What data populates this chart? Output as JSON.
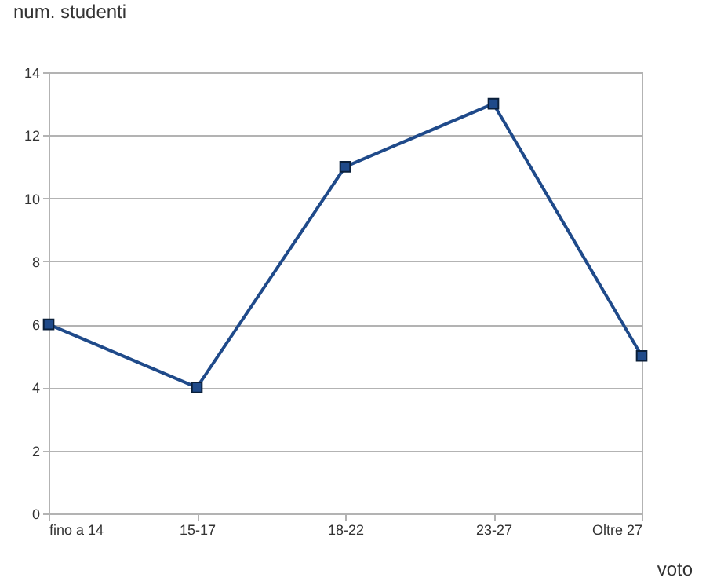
{
  "chart_data": {
    "type": "line",
    "xlabel": "voto",
    "ylabel": "num. studenti",
    "categories": [
      "fino a 14",
      "15-17",
      "18-22",
      "23-27",
      "Oltre 27"
    ],
    "series": [
      {
        "color": "#1f4a8a",
        "values": [
          6,
          4,
          11,
          13,
          5
        ]
      }
    ],
    "ylim": [
      0,
      14
    ],
    "yticks": [
      0,
      2,
      4,
      6,
      8,
      10,
      12,
      14
    ],
    "grid": "y",
    "marker": "square",
    "line_style": "solid",
    "legend": false
  }
}
